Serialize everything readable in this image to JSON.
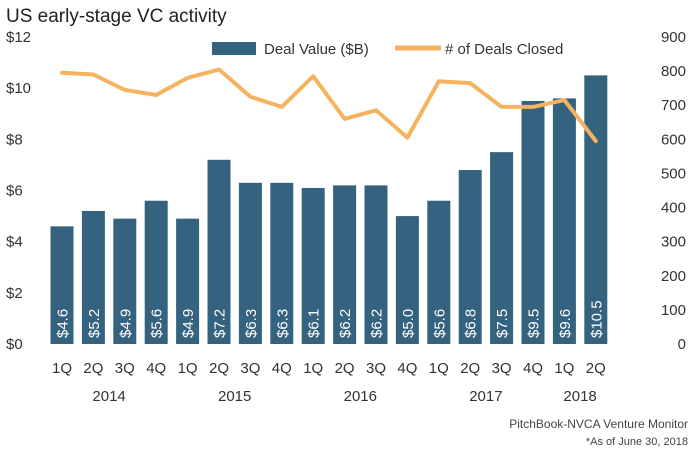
{
  "chart_data": {
    "type": "bar",
    "title": "US early-stage VC activity",
    "categories": [
      "1Q",
      "2Q",
      "3Q",
      "4Q",
      "1Q",
      "2Q",
      "3Q",
      "4Q",
      "1Q",
      "2Q",
      "3Q",
      "4Q",
      "1Q",
      "2Q",
      "3Q",
      "4Q",
      "1Q",
      "2Q"
    ],
    "years": [
      {
        "label": "2014",
        "start": 0,
        "end": 3
      },
      {
        "label": "2015",
        "start": 4,
        "end": 7
      },
      {
        "label": "2016",
        "start": 8,
        "end": 11
      },
      {
        "label": "2017",
        "start": 12,
        "end": 15
      },
      {
        "label": "2018",
        "start": 16,
        "end": 17
      }
    ],
    "series": [
      {
        "name": "Deal Value ($B)",
        "type": "bar",
        "axis": "left",
        "color": "#35637f",
        "values": [
          4.6,
          5.2,
          4.9,
          5.6,
          4.9,
          7.2,
          6.3,
          6.3,
          6.1,
          6.2,
          6.2,
          5.0,
          5.6,
          6.8,
          7.5,
          9.5,
          9.6,
          10.5
        ],
        "labels": [
          "$4.6",
          "$5.2",
          "$4.9",
          "$5.6",
          "$4.9",
          "$7.2",
          "$6.3",
          "$6.3",
          "$6.1",
          "$6.2",
          "$6.2",
          "$5.0",
          "$5.6",
          "$6.8",
          "$7.5",
          "$9.5",
          "$9.6",
          "$10.5"
        ]
      },
      {
        "name": "# of Deals Closed",
        "type": "line",
        "axis": "right",
        "color": "#f5b35f",
        "values": [
          795,
          790,
          745,
          730,
          780,
          805,
          725,
          695,
          785,
          660,
          685,
          605,
          770,
          765,
          695,
          695,
          715,
          595
        ]
      }
    ],
    "y_left": {
      "min": 0,
      "max": 12,
      "step": 2,
      "tick_labels": [
        "$0",
        "$2",
        "$4",
        "$6",
        "$8",
        "$10",
        "$12"
      ]
    },
    "y_right": {
      "min": 0,
      "max": 900,
      "step": 100,
      "tick_labels": [
        "0",
        "100",
        "200",
        "300",
        "400",
        "500",
        "600",
        "700",
        "800",
        "900"
      ]
    },
    "legend_position": "top-center",
    "grid": false,
    "source": "PitchBook-NVCA Venture Monitor",
    "note": "*As of June 30, 2018"
  }
}
